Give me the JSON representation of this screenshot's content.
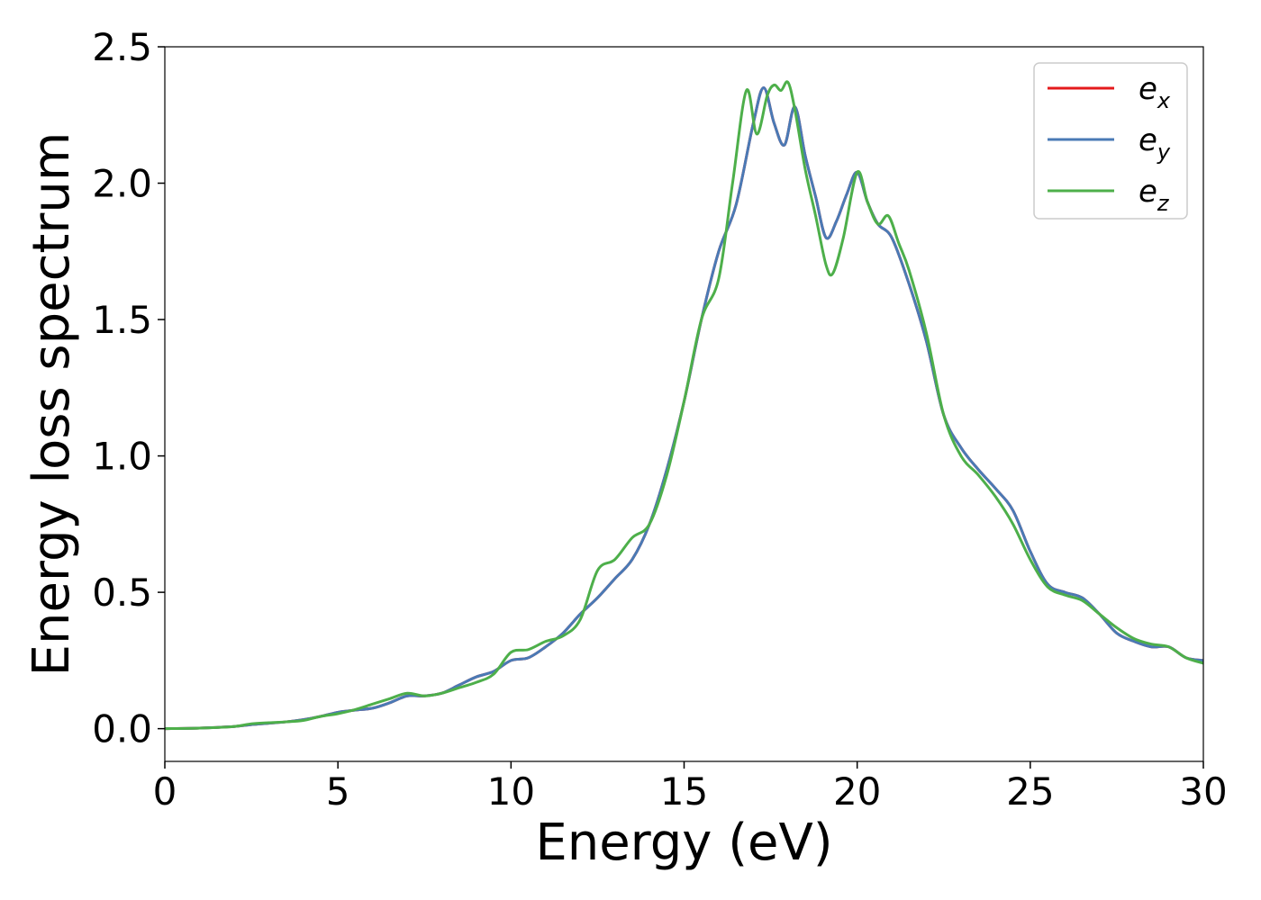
{
  "chart_data": {
    "type": "line",
    "title": "",
    "xlabel": "Energy (eV)",
    "ylabel": "Energy loss spectrum",
    "xlim": [
      0,
      30
    ],
    "ylim": [
      -0.12,
      2.5
    ],
    "xticks": [
      0,
      5,
      10,
      15,
      20,
      25,
      30
    ],
    "xtick_labels": [
      "0",
      "5",
      "10",
      "15",
      "20",
      "25",
      "30"
    ],
    "yticks": [
      0.0,
      0.5,
      1.0,
      1.5,
      2.0,
      2.5
    ],
    "ytick_labels": [
      "0.0",
      "0.5",
      "1.0",
      "1.5",
      "2.0",
      "2.5"
    ],
    "grid": false,
    "legend_position": "top-right",
    "series": [
      {
        "name": "e_x",
        "legend_base": "e",
        "legend_sub": "x",
        "color": "#e41a1c",
        "x": [
          0,
          1,
          2,
          2.5,
          3,
          3.5,
          4,
          4.5,
          5,
          5.5,
          6,
          6.5,
          7,
          7.5,
          8,
          8.5,
          9,
          9.5,
          10,
          10.5,
          11,
          11.5,
          12,
          12.5,
          13,
          13.5,
          14,
          14.5,
          15,
          15.5,
          16,
          16.5,
          17,
          17.3,
          17.6,
          17.9,
          18.2,
          18.5,
          18.8,
          19.1,
          19.4,
          19.7,
          20.0,
          20.3,
          20.6,
          21,
          21.5,
          22,
          22.5,
          23,
          23.5,
          24,
          24.5,
          25,
          25.5,
          26,
          26.5,
          27,
          27.5,
          28,
          28.5,
          29,
          29.5,
          30
        ],
        "y": [
          0,
          0.002,
          0.008,
          0.015,
          0.02,
          0.025,
          0.033,
          0.045,
          0.06,
          0.068,
          0.075,
          0.095,
          0.12,
          0.12,
          0.13,
          0.16,
          0.19,
          0.21,
          0.25,
          0.26,
          0.3,
          0.35,
          0.42,
          0.48,
          0.55,
          0.62,
          0.75,
          0.95,
          1.2,
          1.5,
          1.75,
          1.92,
          2.22,
          2.35,
          2.22,
          2.14,
          2.28,
          2.1,
          1.95,
          1.8,
          1.86,
          1.96,
          2.04,
          1.93,
          1.85,
          1.8,
          1.63,
          1.42,
          1.15,
          1.03,
          0.95,
          0.88,
          0.8,
          0.65,
          0.53,
          0.5,
          0.48,
          0.42,
          0.35,
          0.32,
          0.3,
          0.3,
          0.26,
          0.25
        ]
      },
      {
        "name": "e_y",
        "legend_base": "e",
        "legend_sub": "y",
        "color": "#4a7ab5",
        "x": [
          0,
          1,
          2,
          2.5,
          3,
          3.5,
          4,
          4.5,
          5,
          5.5,
          6,
          6.5,
          7,
          7.5,
          8,
          8.5,
          9,
          9.5,
          10,
          10.5,
          11,
          11.5,
          12,
          12.5,
          13,
          13.5,
          14,
          14.5,
          15,
          15.5,
          16,
          16.5,
          17,
          17.3,
          17.6,
          17.9,
          18.2,
          18.5,
          18.8,
          19.1,
          19.4,
          19.7,
          20.0,
          20.3,
          20.6,
          21,
          21.5,
          22,
          22.5,
          23,
          23.5,
          24,
          24.5,
          25,
          25.5,
          26,
          26.5,
          27,
          27.5,
          28,
          28.5,
          29,
          29.5,
          30
        ],
        "y": [
          0,
          0.002,
          0.008,
          0.015,
          0.02,
          0.025,
          0.033,
          0.045,
          0.06,
          0.068,
          0.075,
          0.095,
          0.12,
          0.12,
          0.13,
          0.16,
          0.19,
          0.21,
          0.25,
          0.26,
          0.3,
          0.35,
          0.42,
          0.48,
          0.55,
          0.62,
          0.75,
          0.95,
          1.2,
          1.5,
          1.75,
          1.92,
          2.22,
          2.35,
          2.22,
          2.14,
          2.28,
          2.1,
          1.95,
          1.8,
          1.86,
          1.96,
          2.04,
          1.93,
          1.85,
          1.8,
          1.63,
          1.42,
          1.15,
          1.03,
          0.95,
          0.88,
          0.8,
          0.65,
          0.53,
          0.5,
          0.48,
          0.42,
          0.35,
          0.32,
          0.3,
          0.3,
          0.26,
          0.25
        ]
      },
      {
        "name": "e_z",
        "legend_base": "e",
        "legend_sub": "z",
        "color": "#4daf4a",
        "x": [
          0,
          1,
          2,
          2.5,
          3,
          3.5,
          4,
          4.5,
          5,
          5.5,
          6,
          6.5,
          7,
          7.5,
          8,
          8.5,
          9,
          9.5,
          10,
          10.5,
          11,
          11.5,
          12,
          12.5,
          13,
          13.5,
          14,
          14.5,
          15,
          15.5,
          16,
          16.4,
          16.8,
          17.1,
          17.4,
          17.6,
          17.8,
          18.0,
          18.2,
          18.5,
          18.8,
          19.1,
          19.3,
          19.6,
          20.0,
          20.3,
          20.6,
          20.9,
          21.2,
          21.5,
          22,
          22.5,
          23,
          23.5,
          24,
          24.5,
          25,
          25.5,
          26,
          26.5,
          27,
          27.5,
          28,
          28.5,
          29,
          29.5,
          30
        ],
        "y": [
          0,
          0.002,
          0.008,
          0.018,
          0.022,
          0.025,
          0.03,
          0.045,
          0.055,
          0.07,
          0.09,
          0.11,
          0.13,
          0.12,
          0.13,
          0.15,
          0.17,
          0.2,
          0.28,
          0.29,
          0.32,
          0.34,
          0.4,
          0.58,
          0.62,
          0.7,
          0.75,
          0.93,
          1.2,
          1.5,
          1.65,
          2.0,
          2.34,
          2.18,
          2.32,
          2.36,
          2.34,
          2.37,
          2.27,
          2.05,
          1.88,
          1.7,
          1.67,
          1.8,
          2.04,
          1.93,
          1.85,
          1.88,
          1.78,
          1.68,
          1.45,
          1.15,
          1.0,
          0.93,
          0.85,
          0.75,
          0.62,
          0.52,
          0.49,
          0.47,
          0.42,
          0.37,
          0.33,
          0.31,
          0.3,
          0.26,
          0.24
        ]
      }
    ]
  }
}
